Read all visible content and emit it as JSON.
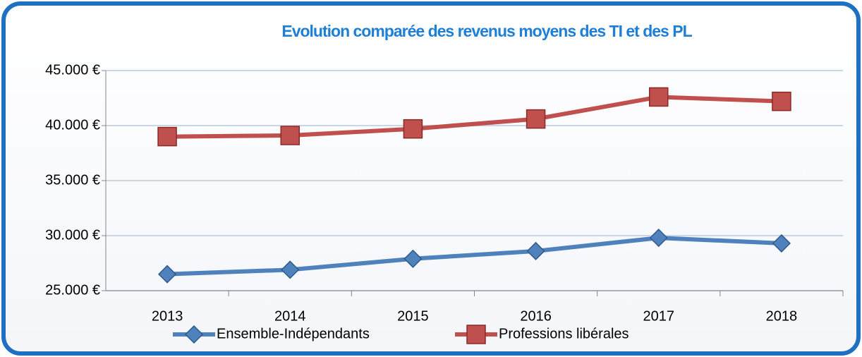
{
  "chart_data": {
    "type": "line",
    "title": "Evolution comparée des revenus moyens des TI et des PL",
    "categories": [
      "2013",
      "2014",
      "2015",
      "2016",
      "2017",
      "2018"
    ],
    "series": [
      {
        "name": "Ensemble-Indépendants",
        "color": "#4f81bd",
        "marker": "diamond",
        "values": [
          26500,
          26900,
          27900,
          28600,
          29800,
          29300
        ]
      },
      {
        "name": "Professions libérales",
        "color": "#c0504d",
        "marker": "square",
        "values": [
          39000,
          39100,
          39700,
          40600,
          42600,
          42200
        ]
      }
    ],
    "ylim": [
      25000,
      45000
    ],
    "yticks": [
      {
        "value": 25000,
        "label": "25.000 €"
      },
      {
        "value": 30000,
        "label": "30.000 €"
      },
      {
        "value": 35000,
        "label": "35.000 €"
      },
      {
        "value": 40000,
        "label": "40.000 €"
      },
      {
        "value": 45000,
        "label": "45.000 €"
      }
    ],
    "grid": true,
    "legend": "bottom"
  }
}
